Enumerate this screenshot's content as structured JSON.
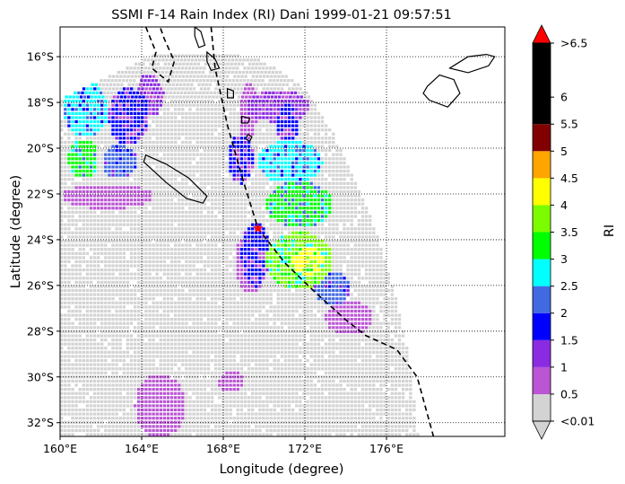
{
  "chart_data": {
    "type": "heatmap",
    "title": "SSMI F-14 Rain Index (RI) Dani 1999-01-21 09:57:51",
    "xlabel": "Longitude (degree)",
    "ylabel": "Latitude (degree)",
    "xlim": [
      160,
      181.8
    ],
    "ylim": [
      -32.6,
      -14.7
    ],
    "x_ticks": [
      "160°E",
      "164°E",
      "168°E",
      "172°E",
      "176°E"
    ],
    "x_tick_values": [
      160,
      164,
      168,
      172,
      176
    ],
    "y_ticks": [
      "16°S",
      "18°S",
      "20°S",
      "22°S",
      "24°S",
      "26°S",
      "28°S",
      "30°S",
      "32°S"
    ],
    "y_tick_values": [
      -16,
      -18,
      -20,
      -22,
      -24,
      -26,
      -28,
      -30,
      -32
    ],
    "grid": true,
    "colorbar": {
      "label": "RI",
      "tick_labels": [
        "<0.01",
        "0.5",
        "1",
        "1.5",
        "2",
        "2.5",
        "3",
        "3.5",
        "4",
        "4.5",
        "5",
        "5.5",
        "6",
        ">6.5"
      ],
      "bins": [
        {
          "range": "<0.01",
          "color": "#d3d3d3"
        },
        {
          "range": "0.01-0.5",
          "color": "#ba55d3"
        },
        {
          "range": "0.5-1",
          "color": "#8a2be2"
        },
        {
          "range": "1-1.5",
          "color": "#0000ff"
        },
        {
          "range": "1.5-2",
          "color": "#4169e1"
        },
        {
          "range": "2-2.5",
          "color": "#00ffff"
        },
        {
          "range": "2.5-3",
          "color": "#00ff00"
        },
        {
          "range": "3-3.5",
          "color": "#7cfc00"
        },
        {
          "range": "3.5-4",
          "color": "#ffff00"
        },
        {
          "range": "4-4.5",
          "color": "#ffa500"
        },
        {
          "range": "4.5-5",
          "color": "#800000"
        },
        {
          "range": "5-6.5",
          "color": "#000000"
        },
        {
          "range": ">6.5",
          "color": "#ff0000"
        }
      ]
    },
    "storm_center": {
      "lon": 169.7,
      "lat": -23.5,
      "color": "#ff0000"
    },
    "storm_track": [
      [
        167.4,
        -14.7
      ],
      [
        167.6,
        -16.5
      ],
      [
        168.2,
        -19
      ],
      [
        169,
        -21.5
      ],
      [
        169.7,
        -23.5
      ],
      [
        171,
        -25
      ],
      [
        172.5,
        -26.3
      ],
      [
        174,
        -27.5
      ],
      [
        175,
        -28.2
      ],
      [
        176.5,
        -28.8
      ],
      [
        177.5,
        -30
      ],
      [
        178.3,
        -32.6
      ]
    ],
    "rain_regions": [
      {
        "lon": [
          160.1,
          162.3
        ],
        "lat": [
          -19.5,
          -17
        ],
        "level": 5
      },
      {
        "lon": [
          162.3,
          164.3
        ],
        "lat": [
          -19.8,
          -17.3
        ],
        "level": 3
      },
      {
        "lon": [
          160.3,
          161.8
        ],
        "lat": [
          -21.3,
          -19.5
        ],
        "level": 6
      },
      {
        "lon": [
          162,
          163.7
        ],
        "lat": [
          -21.3,
          -19.8
        ],
        "level": 4
      },
      {
        "lon": [
          163.6,
          165
        ],
        "lat": [
          -18.6,
          -16.7
        ],
        "level": 2
      },
      {
        "lon": [
          160,
          164.5
        ],
        "lat": [
          -22.6,
          -21.5
        ],
        "level": 1
      },
      {
        "lon": [
          169,
          172.2
        ],
        "lat": [
          -18.8,
          -17.4
        ],
        "level": 2
      },
      {
        "lon": [
          170.5,
          171.6
        ],
        "lat": [
          -19.8,
          -18
        ],
        "level": 3
      },
      {
        "lon": [
          168.2,
          169.4
        ],
        "lat": [
          -21.5,
          -19.3
        ],
        "level": 3
      },
      {
        "lon": [
          169.6,
          172.8
        ],
        "lat": [
          -21.5,
          -19.6
        ],
        "level": 5
      },
      {
        "lon": [
          170,
          173.3
        ],
        "lat": [
          -23.4,
          -21.4
        ],
        "level": 6
      },
      {
        "lon": [
          168.8,
          170.2
        ],
        "lat": [
          -26,
          -23.2
        ],
        "level": 3
      },
      {
        "lon": [
          170,
          173.3
        ],
        "lat": [
          -26.1,
          -23.6
        ],
        "level": 7
      },
      {
        "lon": [
          171.3,
          172.8
        ],
        "lat": [
          -25.5,
          -24.2
        ],
        "level": 8
      },
      {
        "lon": [
          172.4,
          174.2
        ],
        "lat": [
          -26.8,
          -25.3
        ],
        "level": 4
      },
      {
        "lon": [
          172.9,
          175.3
        ],
        "lat": [
          -28.1,
          -26.6
        ],
        "level": 1
      },
      {
        "lon": [
          168.5,
          170
        ],
        "lat": [
          -26.3,
          -23.6
        ],
        "level": 1
      },
      {
        "lon": [
          168.7,
          169.6
        ],
        "lat": [
          -19.6,
          -17
        ],
        "level": 1
      },
      {
        "lon": [
          163.6,
          166.1
        ],
        "lat": [
          -32.6,
          -29.8
        ],
        "level": 1
      },
      {
        "lon": [
          167.7,
          169
        ],
        "lat": [
          -30.6,
          -29.7
        ],
        "level": 1
      }
    ],
    "coastlines": [
      {
        "name": "new-caledonia",
        "lonlat": [
          [
            164.2,
            -20.3
          ],
          [
            165.2,
            -20.7
          ],
          [
            166.3,
            -21.3
          ],
          [
            167.2,
            -22.1
          ],
          [
            167.0,
            -22.4
          ],
          [
            166.2,
            -22.2
          ],
          [
            165.2,
            -21.5
          ],
          [
            164.1,
            -20.6
          ]
        ]
      },
      {
        "name": "fiji-main",
        "lonlat": [
          [
            178.0,
            -17.3
          ],
          [
            178.6,
            -16.8
          ],
          [
            179.3,
            -17.0
          ],
          [
            179.6,
            -17.6
          ],
          [
            179.0,
            -18.2
          ],
          [
            178.1,
            -17.9
          ],
          [
            177.8,
            -17.6
          ]
        ]
      },
      {
        "name": "fiji-north",
        "lonlat": [
          [
            179.1,
            -16.5
          ],
          [
            180.0,
            -16.0
          ],
          [
            180.9,
            -15.9
          ],
          [
            181.3,
            -16.0
          ],
          [
            181.0,
            -16.4
          ],
          [
            180.0,
            -16.7
          ]
        ]
      },
      {
        "name": "vanuatu-espiritu",
        "lonlat": [
          [
            166.6,
            -14.7
          ],
          [
            166.9,
            -14.9
          ],
          [
            167.1,
            -15.5
          ],
          [
            166.8,
            -15.6
          ],
          [
            166.6,
            -15.1
          ]
        ]
      },
      {
        "name": "vanuatu-malekula",
        "lonlat": [
          [
            167.2,
            -15.8
          ],
          [
            167.6,
            -16.1
          ],
          [
            167.8,
            -16.5
          ],
          [
            167.4,
            -16.6
          ],
          [
            167.2,
            -16.2
          ]
        ]
      },
      {
        "name": "vanuatu-efate",
        "lonlat": [
          [
            168.2,
            -17.4
          ],
          [
            168.5,
            -17.5
          ],
          [
            168.5,
            -17.8
          ],
          [
            168.2,
            -17.8
          ]
        ]
      },
      {
        "name": "vanuatu-erromango",
        "lonlat": [
          [
            168.9,
            -18.6
          ],
          [
            169.3,
            -18.7
          ],
          [
            169.2,
            -18.9
          ],
          [
            168.9,
            -18.9
          ]
        ]
      },
      {
        "name": "vanuatu-tanna",
        "lonlat": [
          [
            169.2,
            -19.4
          ],
          [
            169.4,
            -19.5
          ],
          [
            169.3,
            -19.7
          ],
          [
            169.1,
            -19.6
          ]
        ]
      }
    ],
    "eez_boundary": [
      [
        164.2,
        -14.7
      ],
      [
        164.7,
        -15.8
      ],
      [
        164.5,
        -16.5
      ],
      [
        165.3,
        -17.1
      ],
      [
        165.6,
        -16.2
      ],
      [
        165.1,
        -15.2
      ],
      [
        164.9,
        -14.7
      ]
    ],
    "swath": {
      "lon_left": 160,
      "top_lat": -15.9,
      "upper_right": [
        [
          168.7,
          -15.9
        ],
        [
          169.8,
          -16.1
        ],
        [
          171,
          -16.7
        ],
        [
          172.2,
          -17.6
        ],
        [
          173.3,
          -19.2
        ],
        [
          174.1,
          -20.7
        ],
        [
          174.9,
          -22.3
        ],
        [
          175.5,
          -23.8
        ],
        [
          176.1,
          -25.5
        ],
        [
          176.6,
          -27.2
        ],
        [
          177.0,
          -29.0
        ],
        [
          177.3,
          -31.0
        ],
        [
          177.5,
          -32.6
        ]
      ]
    }
  }
}
